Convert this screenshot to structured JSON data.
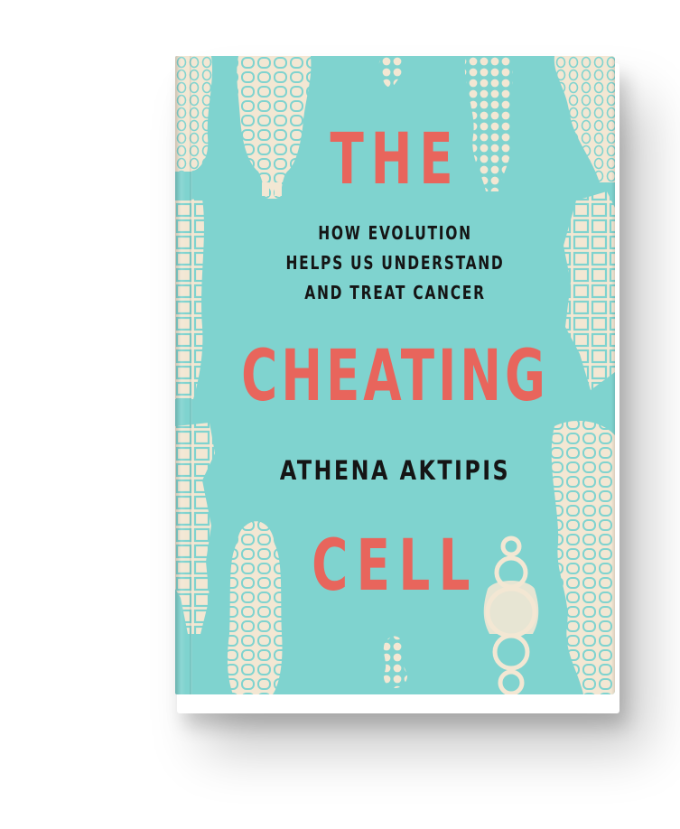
{
  "cover": {
    "title_line1": "THE",
    "title_line2": "CHEATING",
    "title_line3": "CELL",
    "subtitle_line1": "HOW EVOLUTION",
    "subtitle_line2": "HELPS US UNDERSTAND",
    "subtitle_line3": "AND TREAT CANCER",
    "author": "ATHENA AKTIPIS"
  },
  "colors": {
    "cover_background": "#7fd3cf",
    "title": "#e8655c",
    "text": "#151515",
    "figures": "#f3e7d3"
  }
}
